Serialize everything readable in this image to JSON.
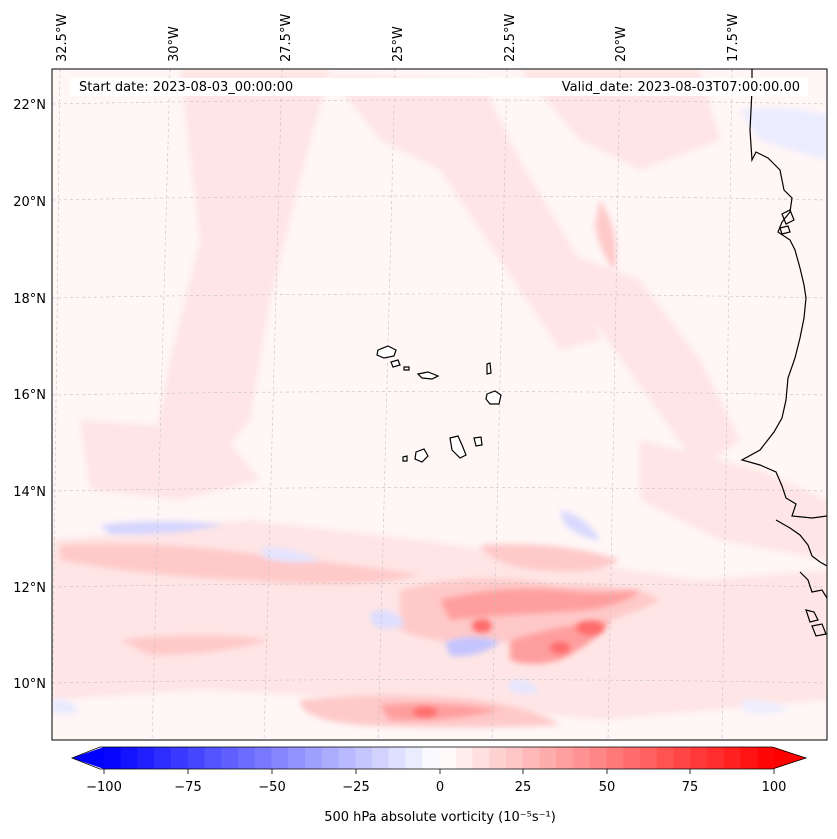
{
  "header": {
    "start_date": "Start date: 2023-08-03_00:00:00",
    "valid_date": "Valid_date: 2023-08-03T07:00:00.00"
  },
  "map": {
    "lon_labels": [
      "32.5°W",
      "30°W",
      "27.5°W",
      "25°W",
      "22.5°W",
      "20°W",
      "17.5°W"
    ],
    "lat_labels": [
      "22°N",
      "20°N",
      "18°N",
      "16°N",
      "14°N",
      "12°N",
      "10°N"
    ],
    "gridlines": true,
    "field": "500 hPa absolute vorticity",
    "colormap": "bwr",
    "colors": {
      "negative": "#0000ff",
      "neutral": "#ffffff",
      "positive": "#ff0000",
      "coastline": "#000000",
      "gridline": "#b0b0b0"
    }
  },
  "colorbar": {
    "min": -100,
    "max": 100,
    "levels": 41,
    "ticks": [
      "−100",
      "−75",
      "−50",
      "−25",
      "0",
      "25",
      "50",
      "75",
      "100"
    ],
    "label": "500 hPa absolute vorticity (10⁻⁵s⁻¹)"
  }
}
